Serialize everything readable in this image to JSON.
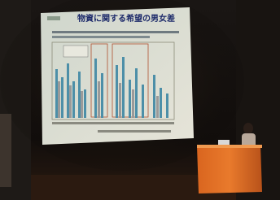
{
  "slide": {
    "title": "物資に関する希望の男女差"
  }
}
